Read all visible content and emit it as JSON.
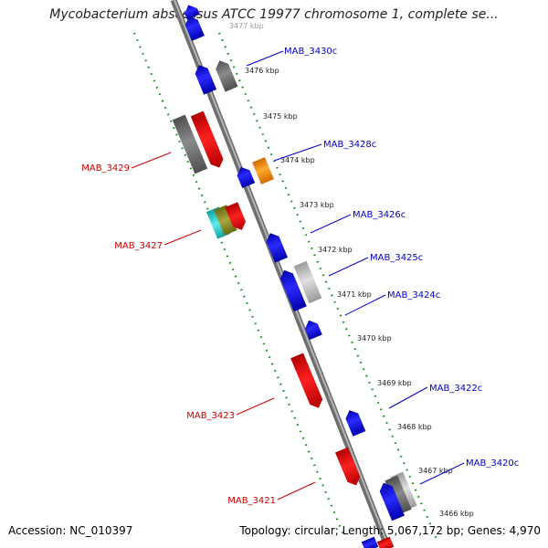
{
  "title": "Mycobacterium abscessus ATCC 19977 chromosome 1, complete se...",
  "footer": {
    "accession": "Accession: NC_010397",
    "topology": "Topology: circular; Length: 5,067,172 bp; Genes: 4,970"
  },
  "ticks": [
    "3477 kbp",
    "3476 kbp",
    "3475 kbp",
    "3474 kbp",
    "3473 kbp",
    "3472 kbp",
    "3471 kbp",
    "3470 kbp",
    "3469 kbp",
    "3468 kbp",
    "3467 kbp",
    "3466 kbp"
  ],
  "genes": [
    {
      "id": "MAB_3430c",
      "strand": "reverse",
      "color": "#0000cc"
    },
    {
      "id": "MAB_3429",
      "strand": "forward",
      "color": "#cc0000"
    },
    {
      "id": "MAB_3428c",
      "strand": "reverse",
      "color": "#0000cc"
    },
    {
      "id": "MAB_3427",
      "strand": "forward",
      "color": "#cc0000"
    },
    {
      "id": "MAB_3426c",
      "strand": "reverse",
      "color": "#0000cc"
    },
    {
      "id": "MAB_3425c",
      "strand": "reverse",
      "color": "#0000cc"
    },
    {
      "id": "MAB_3424c",
      "strand": "reverse",
      "color": "#0000cc"
    },
    {
      "id": "MAB_3423",
      "strand": "forward",
      "color": "#cc0000"
    },
    {
      "id": "MAB_3422c",
      "strand": "reverse",
      "color": "#0000cc"
    },
    {
      "id": "MAB_3421",
      "strand": "forward",
      "color": "#cc0000"
    },
    {
      "id": "MAB_3420c",
      "strand": "reverse",
      "color": "#0000cc"
    }
  ],
  "colors": {
    "forward": "#ff0000",
    "reverse": "#0000ee",
    "orf": "#707070",
    "backbone": "#8c8c8c",
    "ticks": "#1e8a1e",
    "orange": "#ff8c00",
    "cyan": "#19c8c8",
    "olive": "#8a8a2a"
  }
}
